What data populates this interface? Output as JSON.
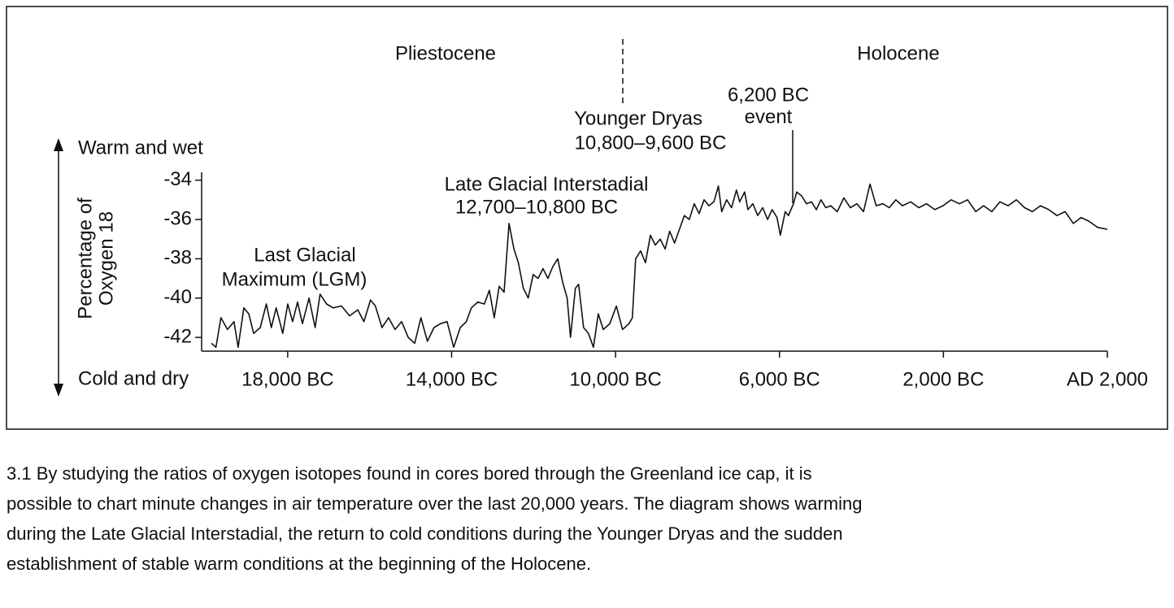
{
  "chart_data": {
    "type": "line",
    "y_label": [
      "Percentage of",
      "Oxygen 18"
    ],
    "y_top_label": "Warm and wet",
    "y_bottom_label": "Cold and dry",
    "annotations": [
      "Pliestocene",
      "Holocene",
      "Younger Dryas",
      "10,800–9,600 BC",
      "6,200 BC",
      "event",
      "Late Glacial Interstadial",
      "12,700–10,800 BC",
      "Last Glacial",
      "Maximum (LGM)"
    ],
    "x": [
      -19860,
      -19750,
      -19630,
      -19470,
      -19310,
      -19210,
      -19070,
      -18950,
      -18830,
      -18670,
      -18520,
      -18400,
      -18280,
      -18120,
      -18000,
      -17880,
      -17760,
      -17640,
      -17480,
      -17330,
      -17210,
      -17050,
      -16890,
      -16690,
      -16490,
      -16290,
      -16140,
      -15980,
      -15860,
      -15700,
      -15540,
      -15380,
      -15220,
      -15060,
      -14900,
      -14750,
      -14590,
      -14430,
      -14270,
      -14110,
      -13950,
      -13790,
      -13640,
      -13520,
      -13360,
      -13200,
      -13080,
      -12960,
      -12840,
      -12720,
      -12600,
      -12480,
      -12370,
      -12250,
      -12130,
      -12010,
      -11890,
      -11770,
      -11650,
      -11530,
      -11410,
      -11290,
      -11180,
      -11100,
      -10980,
      -10900,
      -10780,
      -10660,
      -10540,
      -10420,
      -10300,
      -10140,
      -9980,
      -9830,
      -9670,
      -9590,
      -9510,
      -9390,
      -9270,
      -9150,
      -9030,
      -8910,
      -8790,
      -8680,
      -8560,
      -8440,
      -8320,
      -8200,
      -8080,
      -7960,
      -7840,
      -7720,
      -7600,
      -7490,
      -7410,
      -7290,
      -7170,
      -7050,
      -6970,
      -6850,
      -6770,
      -6650,
      -6530,
      -6410,
      -6290,
      -6180,
      -6060,
      -5980,
      -5860,
      -5780,
      -5660,
      -5580,
      -5460,
      -5340,
      -5220,
      -5100,
      -4990,
      -4870,
      -4750,
      -4590,
      -4430,
      -4270,
      -4110,
      -3950,
      -3790,
      -3640,
      -3480,
      -3320,
      -3160,
      -3000,
      -2800,
      -2600,
      -2410,
      -2210,
      -2010,
      -1810,
      -1610,
      -1410,
      -1210,
      -1020,
      -820,
      -620,
      -420,
      -220,
      -20,
      170,
      370,
      570,
      770,
      970,
      1170,
      1360,
      1560,
      1760,
      2000
    ],
    "series": [
      {
        "color": "#111111",
        "values": [
          -42.3,
          -42.5,
          -41.0,
          -41.6,
          -41.2,
          -42.5,
          -40.5,
          -40.8,
          -41.8,
          -41.5,
          -40.3,
          -41.5,
          -40.5,
          -41.8,
          -40.3,
          -41.2,
          -40.2,
          -41.3,
          -40.0,
          -41.5,
          -39.8,
          -40.3,
          -40.5,
          -40.4,
          -40.9,
          -40.6,
          -41.2,
          -40.1,
          -40.4,
          -41.5,
          -41.0,
          -41.6,
          -41.2,
          -42.0,
          -42.3,
          -41.0,
          -42.2,
          -41.5,
          -41.3,
          -41.2,
          -42.5,
          -41.5,
          -41.2,
          -40.5,
          -40.2,
          -40.3,
          -39.6,
          -41.0,
          -39.4,
          -39.7,
          -36.2,
          -37.5,
          -38.2,
          -39.5,
          -40.0,
          -38.8,
          -39.0,
          -38.5,
          -39.0,
          -38.4,
          -38.0,
          -39.2,
          -40.0,
          -42.0,
          -39.5,
          -39.3,
          -41.5,
          -41.8,
          -42.5,
          -40.8,
          -41.6,
          -41.3,
          -40.4,
          -41.6,
          -41.3,
          -41.0,
          -38.0,
          -37.6,
          -38.2,
          -36.8,
          -37.3,
          -37.0,
          -37.5,
          -36.6,
          -37.2,
          -36.5,
          -35.8,
          -36.0,
          -35.2,
          -35.7,
          -35.0,
          -35.3,
          -35.1,
          -34.3,
          -35.6,
          -35.0,
          -35.4,
          -34.5,
          -35.1,
          -34.6,
          -35.5,
          -35.2,
          -35.8,
          -35.4,
          -36.0,
          -35.5,
          -35.9,
          -36.8,
          -35.6,
          -35.8,
          -35.2,
          -34.6,
          -34.8,
          -35.2,
          -35.1,
          -35.5,
          -35.0,
          -35.4,
          -35.3,
          -35.6,
          -34.9,
          -35.4,
          -35.2,
          -35.6,
          -34.2,
          -35.3,
          -35.2,
          -35.4,
          -35.0,
          -35.3,
          -35.1,
          -35.4,
          -35.2,
          -35.5,
          -35.3,
          -35.0,
          -35.2,
          -35.0,
          -35.6,
          -35.3,
          -35.6,
          -35.1,
          -35.3,
          -35.0,
          -35.4,
          -35.6,
          -35.3,
          -35.5,
          -35.8,
          -35.6,
          -36.2,
          -35.9,
          -36.1,
          -36.4,
          -36.5
        ]
      }
    ],
    "xlim": [
      -20100,
      2000
    ],
    "xticks": [
      {
        "value": -18000,
        "label": "18,000 BC"
      },
      {
        "value": -14000,
        "label": "14,000 BC"
      },
      {
        "value": -10000,
        "label": "10,000 BC"
      },
      {
        "value": -6000,
        "label": "6,000 BC"
      },
      {
        "value": -2000,
        "label": "2,000 BC"
      },
      {
        "value": 2000,
        "label": "AD 2,000"
      }
    ],
    "ylim": [
      -42.7,
      -33.6
    ],
    "yticks": [
      -34,
      -36,
      -38,
      -40,
      -42
    ],
    "grid": false
  },
  "caption": [
    "3.1  By studying the ratios of oxygen isotopes found in cores bored through the Greenland ice cap, it is",
    "possible to chart minute changes in air temperature over the last 20,000 years. The diagram shows warming",
    "during the Late Glacial Interstadial, the return to cold conditions during the Younger Dryas and the sudden",
    "establishment of stable warm conditions at the beginning of the Holocene."
  ]
}
